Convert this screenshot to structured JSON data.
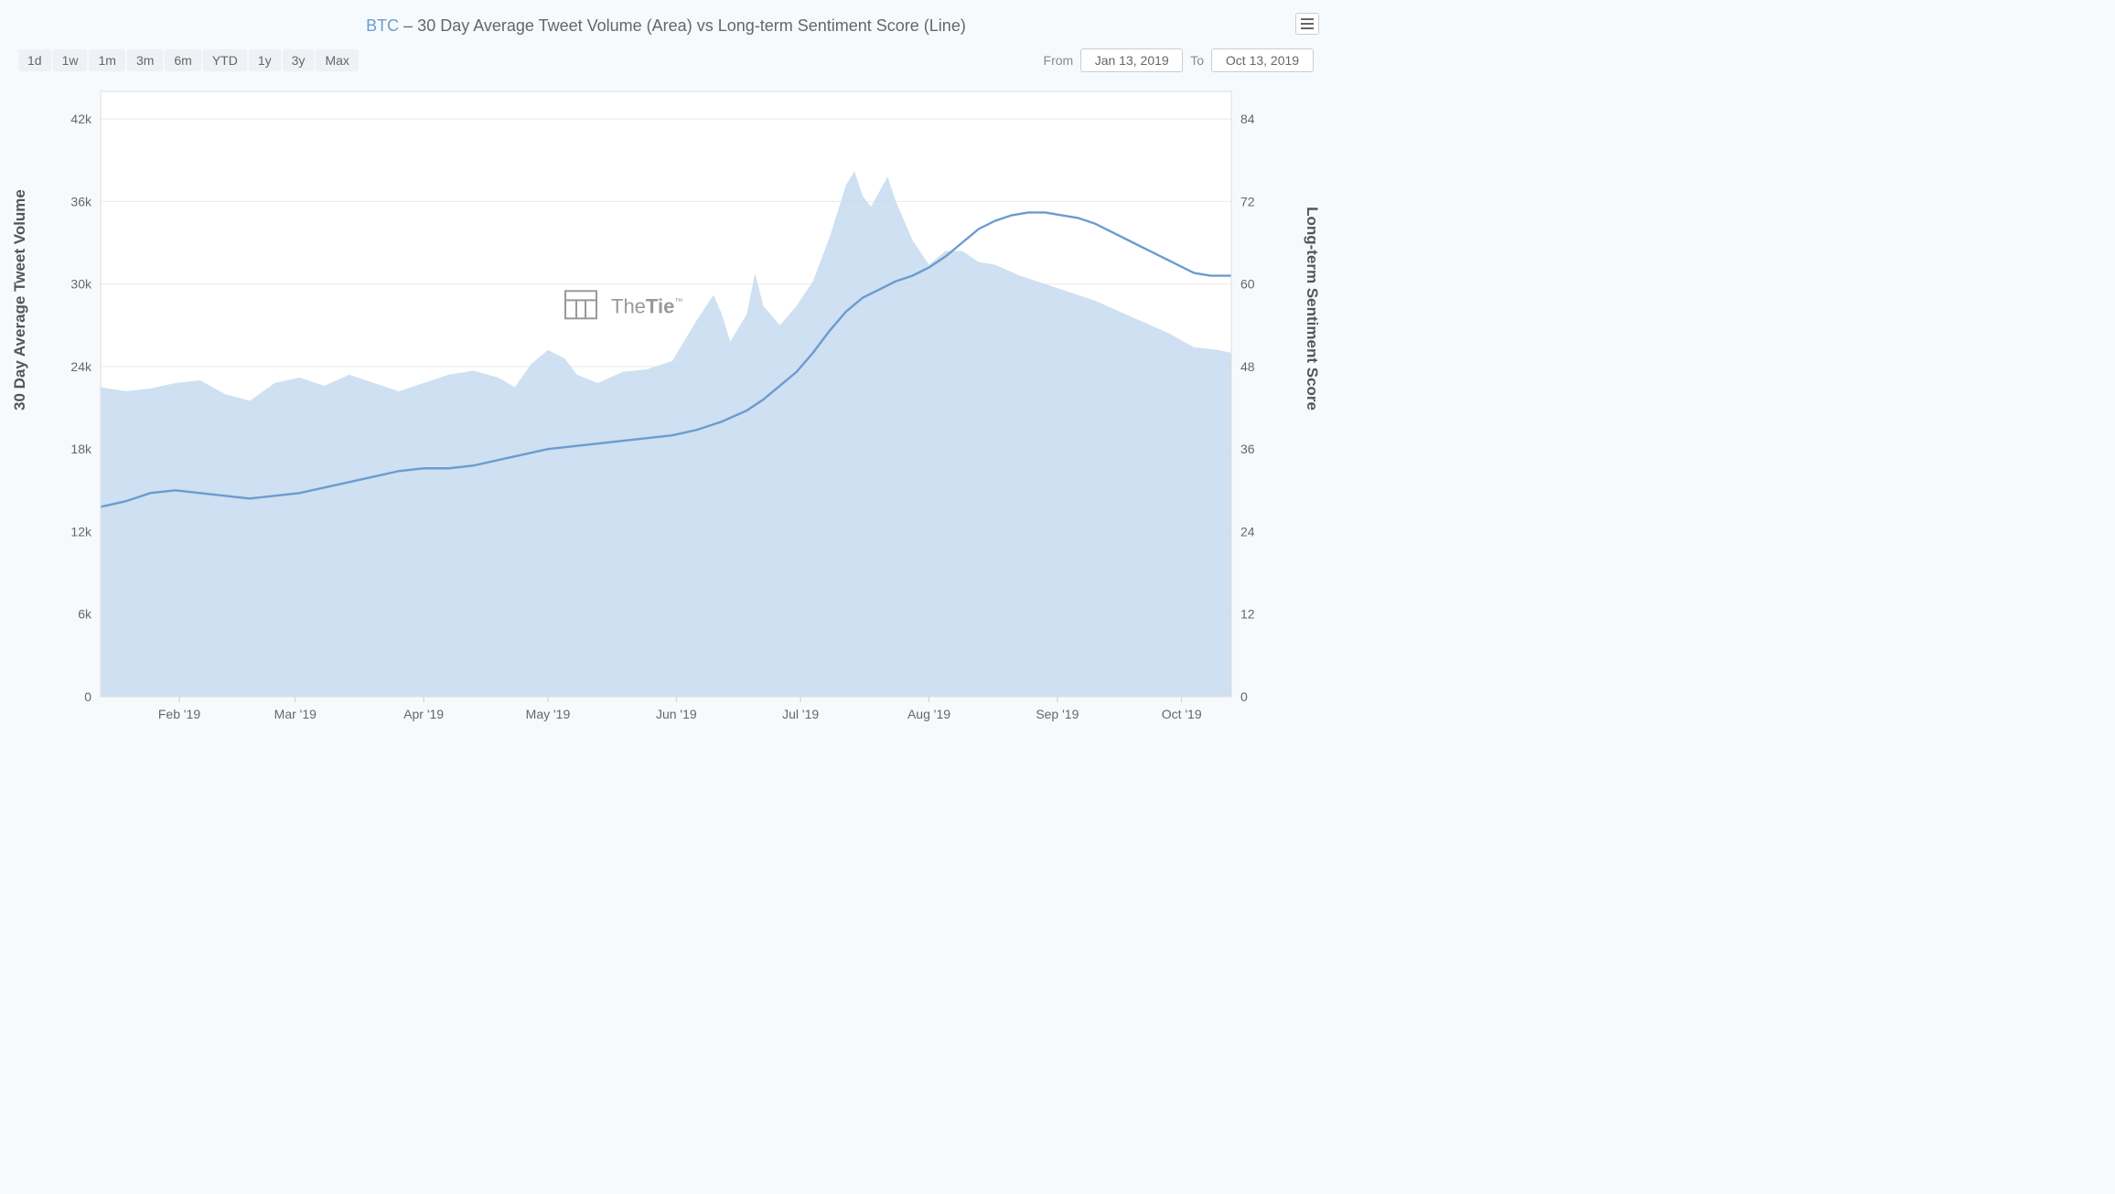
{
  "title": {
    "symbol": "BTC",
    "rest": " – 30 Day Average Tweet Volume (Area) vs Long-term Sentiment Score (Line)"
  },
  "ranges": [
    "1d",
    "1w",
    "1m",
    "3m",
    "6m",
    "YTD",
    "1y",
    "3y",
    "Max"
  ],
  "dateFrom": {
    "label": "From",
    "value": "Jan 13, 2019"
  },
  "dateTo": {
    "label": "To",
    "value": "Oct 13, 2019"
  },
  "leftAxis": {
    "title": "30 Day Average Tweet Volume",
    "min": 0,
    "max": 44000,
    "ticks": [
      0,
      6000,
      12000,
      18000,
      24000,
      30000,
      36000,
      42000
    ],
    "tickLabels": [
      "0",
      "6k",
      "12k",
      "18k",
      "24k",
      "30k",
      "36k",
      "42k"
    ]
  },
  "rightAxis": {
    "title": "Long-term Sentiment Score",
    "min": 0,
    "max": 88,
    "ticks": [
      0,
      12,
      24,
      36,
      48,
      60,
      72,
      84
    ]
  },
  "xAxis": {
    "min": 0,
    "max": 273,
    "ticks": [
      19,
      47,
      78,
      108,
      139,
      169,
      200,
      231,
      261
    ],
    "tickLabels": [
      "Feb '19",
      "Mar '19",
      "Apr '19",
      "May '19",
      "Jun '19",
      "Jul '19",
      "Aug '19",
      "Sep '19",
      "Oct '19"
    ]
  },
  "chart": {
    "type": "area+line",
    "background": "#ffffff",
    "grid_color": "#e8e8e8",
    "area_color": "#c5daee",
    "line_color": "#6c9bd1",
    "line_width": 2.4,
    "watermark": "TheTie"
  },
  "areaSeries": [
    [
      0,
      22500
    ],
    [
      6,
      22200
    ],
    [
      12,
      22400
    ],
    [
      18,
      22800
    ],
    [
      24,
      23000
    ],
    [
      30,
      22000
    ],
    [
      36,
      21500
    ],
    [
      42,
      22800
    ],
    [
      48,
      23200
    ],
    [
      54,
      22600
    ],
    [
      60,
      23400
    ],
    [
      66,
      22800
    ],
    [
      72,
      22200
    ],
    [
      78,
      22800
    ],
    [
      84,
      23400
    ],
    [
      90,
      23700
    ],
    [
      96,
      23200
    ],
    [
      100,
      22500
    ],
    [
      104,
      24200
    ],
    [
      108,
      25200
    ],
    [
      112,
      24600
    ],
    [
      115,
      23400
    ],
    [
      120,
      22800
    ],
    [
      126,
      23600
    ],
    [
      132,
      23800
    ],
    [
      138,
      24400
    ],
    [
      144,
      27400
    ],
    [
      148,
      29200
    ],
    [
      150,
      27800
    ],
    [
      152,
      25800
    ],
    [
      156,
      27800
    ],
    [
      158,
      30800
    ],
    [
      160,
      28400
    ],
    [
      164,
      27000
    ],
    [
      168,
      28400
    ],
    [
      172,
      30200
    ],
    [
      176,
      33400
    ],
    [
      180,
      37200
    ],
    [
      182,
      38200
    ],
    [
      184,
      36400
    ],
    [
      186,
      35600
    ],
    [
      190,
      37800
    ],
    [
      192,
      36000
    ],
    [
      196,
      33200
    ],
    [
      200,
      31400
    ],
    [
      204,
      32400
    ],
    [
      208,
      32400
    ],
    [
      212,
      31600
    ],
    [
      216,
      31400
    ],
    [
      222,
      30600
    ],
    [
      228,
      30000
    ],
    [
      234,
      29400
    ],
    [
      240,
      28800
    ],
    [
      246,
      28000
    ],
    [
      252,
      27200
    ],
    [
      258,
      26400
    ],
    [
      264,
      25400
    ],
    [
      270,
      25200
    ],
    [
      273,
      25000
    ]
  ],
  "lineSeries": [
    [
      0,
      27.6
    ],
    [
      6,
      28.4
    ],
    [
      12,
      29.6
    ],
    [
      18,
      30.0
    ],
    [
      24,
      29.6
    ],
    [
      30,
      29.2
    ],
    [
      36,
      28.8
    ],
    [
      42,
      29.2
    ],
    [
      48,
      29.6
    ],
    [
      54,
      30.4
    ],
    [
      60,
      31.2
    ],
    [
      66,
      32.0
    ],
    [
      72,
      32.8
    ],
    [
      78,
      33.2
    ],
    [
      84,
      33.2
    ],
    [
      90,
      33.6
    ],
    [
      96,
      34.4
    ],
    [
      102,
      35.2
    ],
    [
      108,
      36.0
    ],
    [
      114,
      36.4
    ],
    [
      120,
      36.8
    ],
    [
      126,
      37.2
    ],
    [
      132,
      37.6
    ],
    [
      138,
      38.0
    ],
    [
      144,
      38.8
    ],
    [
      150,
      40.0
    ],
    [
      156,
      41.6
    ],
    [
      160,
      43.2
    ],
    [
      164,
      45.2
    ],
    [
      168,
      47.2
    ],
    [
      172,
      50.0
    ],
    [
      176,
      53.2
    ],
    [
      180,
      56.0
    ],
    [
      184,
      58.0
    ],
    [
      188,
      59.2
    ],
    [
      192,
      60.4
    ],
    [
      196,
      61.2
    ],
    [
      200,
      62.4
    ],
    [
      204,
      64.0
    ],
    [
      208,
      66.0
    ],
    [
      212,
      68.0
    ],
    [
      216,
      69.2
    ],
    [
      220,
      70.0
    ],
    [
      224,
      70.4
    ],
    [
      228,
      70.4
    ],
    [
      232,
      70.0
    ],
    [
      236,
      69.6
    ],
    [
      240,
      68.8
    ],
    [
      244,
      67.6
    ],
    [
      248,
      66.4
    ],
    [
      252,
      65.2
    ],
    [
      256,
      64.0
    ],
    [
      260,
      62.8
    ],
    [
      264,
      61.6
    ],
    [
      268,
      61.2
    ],
    [
      273,
      61.2
    ]
  ]
}
